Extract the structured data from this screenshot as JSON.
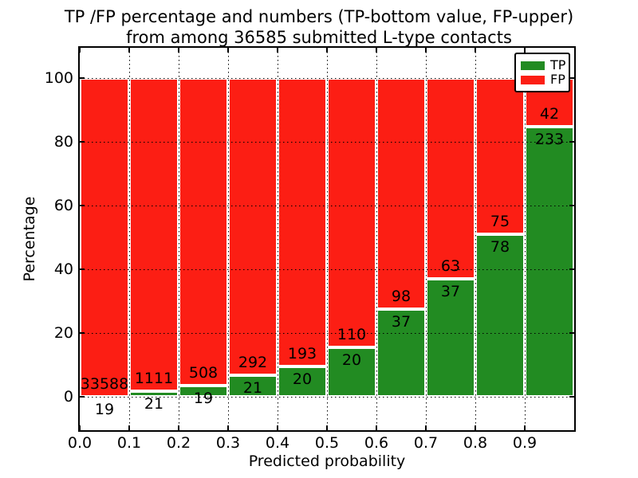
{
  "title": {
    "line1": "TP /FP percentage and numbers (TP-bottom value, FP-upper)",
    "line2": "from among 36585 submitted L-type contacts"
  },
  "chart_data": {
    "type": "bar",
    "stacked": true,
    "normalized_to_percent": true,
    "title": "TP /FP percentage and numbers (TP-bottom value, FP-upper) from among 36585 submitted L-type contacts",
    "xlabel": "Predicted probability",
    "ylabel": "Percentage",
    "total_contacts": 36585,
    "xlim": [
      0.0,
      1.0
    ],
    "ylim": [
      -10.5,
      109.5
    ],
    "grid": "dotted",
    "x_tick_labels": [
      "0.0",
      "0.1",
      "0.2",
      "0.3",
      "0.4",
      "0.5",
      "0.6",
      "0.7",
      "0.8",
      "0.9"
    ],
    "y_tick_labels": [
      "0",
      "20",
      "40",
      "60",
      "80",
      "100"
    ],
    "legend": {
      "position": "upper right",
      "entries": [
        "TP",
        "FP"
      ]
    },
    "series": [
      {
        "name": "TP",
        "color": "#228b22",
        "counts": [
          19,
          21,
          19,
          21,
          20,
          20,
          37,
          37,
          78,
          233
        ]
      },
      {
        "name": "FP",
        "color": "#fc1e14",
        "counts": [
          33588,
          1111,
          508,
          292,
          193,
          110,
          98,
          63,
          75,
          42
        ]
      }
    ],
    "bins": [
      {
        "range": "0.0-0.1",
        "tp": 19,
        "fp": 33588,
        "tp_percent": 0.06
      },
      {
        "range": "0.1-0.2",
        "tp": 21,
        "fp": 1111,
        "tp_percent": 1.86
      },
      {
        "range": "0.2-0.3",
        "tp": 19,
        "fp": 508,
        "tp_percent": 3.61
      },
      {
        "range": "0.3-0.4",
        "tp": 21,
        "fp": 292,
        "tp_percent": 6.71
      },
      {
        "range": "0.4-0.5",
        "tp": 20,
        "fp": 193,
        "tp_percent": 9.39
      },
      {
        "range": "0.5-0.6",
        "tp": 20,
        "fp": 110,
        "tp_percent": 15.38
      },
      {
        "range": "0.6-0.7",
        "tp": 37,
        "fp": 98,
        "tp_percent": 27.41
      },
      {
        "range": "0.7-0.8",
        "tp": 37,
        "fp": 63,
        "tp_percent": 37.0
      },
      {
        "range": "0.8-0.9",
        "tp": 78,
        "fp": 75,
        "tp_percent": 50.98
      },
      {
        "range": "0.9-1.0",
        "tp": 233,
        "fp": 42,
        "tp_percent": 84.73
      }
    ]
  }
}
